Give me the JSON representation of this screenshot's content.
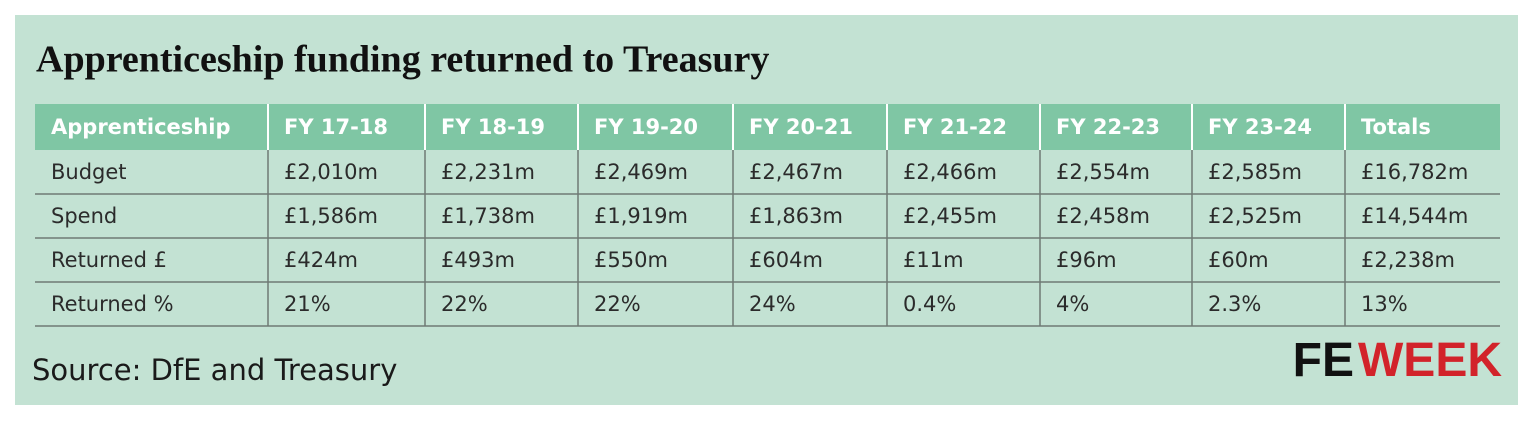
{
  "title": "Apprenticeship funding returned to Treasury",
  "table": {
    "header": [
      "Apprenticeship",
      "FY 17-18",
      "FY 18-19",
      "FY 19-20",
      "FY 20-21",
      "FY 21-22",
      "FY 22-23",
      "FY 23-24",
      "Totals"
    ],
    "rows": [
      [
        "Budget",
        "£2,010m",
        "£2,231m",
        "£2,469m",
        "£2,467m",
        "£2,466m",
        "£2,554m",
        "£2,585m",
        "£16,782m"
      ],
      [
        "Spend",
        "£1,586m",
        "£1,738m",
        "£1,919m",
        "£1,863m",
        "£2,455m",
        "£2,458m",
        "£2,525m",
        "£14,544m"
      ],
      [
        "Returned £",
        "£424m",
        "£493m",
        "£550m",
        "£604m",
        "£11m",
        "£96m",
        "£60m",
        "£2,238m"
      ],
      [
        "Returned %",
        "21%",
        "22%",
        "22%",
        "24%",
        "0.4%",
        "4%",
        "2.3%",
        "13%"
      ]
    ]
  },
  "source": "Source: DfE and Treasury",
  "logo": {
    "fe": "FE",
    "week": "WEEK"
  }
}
